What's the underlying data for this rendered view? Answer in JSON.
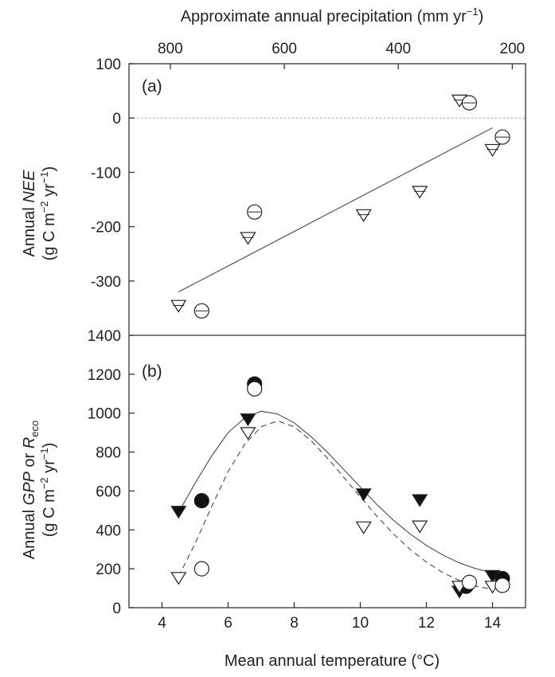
{
  "chart_data": [
    {
      "panel": "(a)",
      "type": "scatter",
      "top_axis": {
        "label": "Approximate annual precipitation (mm yr",
        "label_sup": "−1",
        "label_end": ")",
        "ticks": [
          800,
          600,
          400,
          200
        ]
      },
      "ylabel": {
        "line1_pre": "Annual ",
        "line1_italic": "NEE",
        "line2_a": "(g C m",
        "line2_sup1": "−2",
        "line2_b": " yr",
        "line2_sup2": "−1",
        "line2_c": ")"
      },
      "ylim": [
        -400,
        100
      ],
      "yticks": [
        100,
        0,
        -100,
        -200,
        -300
      ],
      "zero_line": "dotted",
      "series": [
        {
          "marker": "triangle",
          "values": [
            {
              "x": 4.5,
              "y": -345
            },
            {
              "x": 6.6,
              "y": -220
            },
            {
              "x": 10.1,
              "y": -178
            },
            {
              "x": 11.8,
              "y": -135
            },
            {
              "x": 13.0,
              "y": 33
            },
            {
              "x": 14.0,
              "y": -58
            }
          ]
        },
        {
          "marker": "circle",
          "values": [
            {
              "x": 5.2,
              "y": -355
            },
            {
              "x": 6.8,
              "y": -173
            },
            {
              "x": 13.3,
              "y": 28
            },
            {
              "x": 14.3,
              "y": -35
            }
          ]
        }
      ],
      "fit_line": [
        {
          "x": 4.5,
          "y": -320
        },
        {
          "x": 14.0,
          "y": -18
        }
      ]
    },
    {
      "panel": "(b)",
      "type": "scatter",
      "xlabel": "Mean annual temperature (°C)",
      "xlim": [
        3,
        15
      ],
      "xticks": [
        4,
        6,
        8,
        10,
        12,
        14
      ],
      "ylabel": {
        "line1_pre": "Annual ",
        "line1_italic": "GPP",
        "line1_mid": " or ",
        "line1_italic2": "R",
        "line1_sub": "eco",
        "line2_a": "(g C m",
        "line2_sup1": "−2",
        "line2_b": " yr",
        "line2_sup2": "−1",
        "line2_c": ")"
      },
      "ylim": [
        0,
        1400
      ],
      "yticks": [
        0,
        200,
        400,
        600,
        800,
        1000,
        1200,
        1400
      ],
      "series": [
        {
          "marker": "triangle-filled",
          "values": [
            {
              "x": 4.5,
              "y": 495
            },
            {
              "x": 6.6,
              "y": 970
            },
            {
              "x": 10.1,
              "y": 585
            },
            {
              "x": 11.8,
              "y": 555
            },
            {
              "x": 13.0,
              "y": 85
            },
            {
              "x": 14.0,
              "y": 165
            }
          ]
        },
        {
          "marker": "circle-filled",
          "values": [
            {
              "x": 5.2,
              "y": 550
            },
            {
              "x": 6.8,
              "y": 1150
            },
            {
              "x": 13.2,
              "y": 110
            },
            {
              "x": 14.3,
              "y": 150
            }
          ]
        },
        {
          "marker": "triangle",
          "values": [
            {
              "x": 4.5,
              "y": 155
            },
            {
              "x": 6.6,
              "y": 900
            },
            {
              "x": 10.1,
              "y": 415
            },
            {
              "x": 11.8,
              "y": 420
            },
            {
              "x": 13.0,
              "y": 110
            },
            {
              "x": 14.0,
              "y": 110
            }
          ]
        },
        {
          "marker": "circle",
          "values": [
            {
              "x": 5.2,
              "y": 200
            },
            {
              "x": 6.8,
              "y": 1125
            },
            {
              "x": 13.3,
              "y": 130
            },
            {
              "x": 14.3,
              "y": 115
            }
          ]
        }
      ],
      "fit_curves": [
        {
          "style": "solid",
          "points": [
            {
              "x": 4.5,
              "y": 490
            },
            {
              "x": 5.0,
              "y": 640
            },
            {
              "x": 5.5,
              "y": 780
            },
            {
              "x": 6.0,
              "y": 900
            },
            {
              "x": 6.5,
              "y": 975
            },
            {
              "x": 7.0,
              "y": 1010
            },
            {
              "x": 7.5,
              "y": 995
            },
            {
              "x": 8.0,
              "y": 950
            },
            {
              "x": 8.5,
              "y": 880
            },
            {
              "x": 9.0,
              "y": 800
            },
            {
              "x": 9.5,
              "y": 710
            },
            {
              "x": 10.0,
              "y": 620
            },
            {
              "x": 10.5,
              "y": 530
            },
            {
              "x": 11.0,
              "y": 450
            },
            {
              "x": 11.5,
              "y": 380
            },
            {
              "x": 12.0,
              "y": 320
            },
            {
              "x": 12.5,
              "y": 270
            },
            {
              "x": 13.0,
              "y": 230
            },
            {
              "x": 13.5,
              "y": 200
            },
            {
              "x": 14.0,
              "y": 180
            }
          ]
        },
        {
          "style": "dashed",
          "points": [
            {
              "x": 4.5,
              "y": 160
            },
            {
              "x": 5.0,
              "y": 330
            },
            {
              "x": 5.5,
              "y": 520
            },
            {
              "x": 6.0,
              "y": 700
            },
            {
              "x": 6.5,
              "y": 840
            },
            {
              "x": 7.0,
              "y": 930
            },
            {
              "x": 7.5,
              "y": 960
            },
            {
              "x": 8.0,
              "y": 930
            },
            {
              "x": 8.5,
              "y": 860
            },
            {
              "x": 9.0,
              "y": 770
            },
            {
              "x": 9.5,
              "y": 670
            },
            {
              "x": 10.0,
              "y": 570
            },
            {
              "x": 10.5,
              "y": 470
            },
            {
              "x": 11.0,
              "y": 380
            },
            {
              "x": 11.5,
              "y": 300
            },
            {
              "x": 12.0,
              "y": 235
            },
            {
              "x": 12.5,
              "y": 180
            },
            {
              "x": 13.0,
              "y": 140
            },
            {
              "x": 13.5,
              "y": 110
            },
            {
              "x": 14.0,
              "y": 95
            }
          ]
        }
      ]
    }
  ]
}
